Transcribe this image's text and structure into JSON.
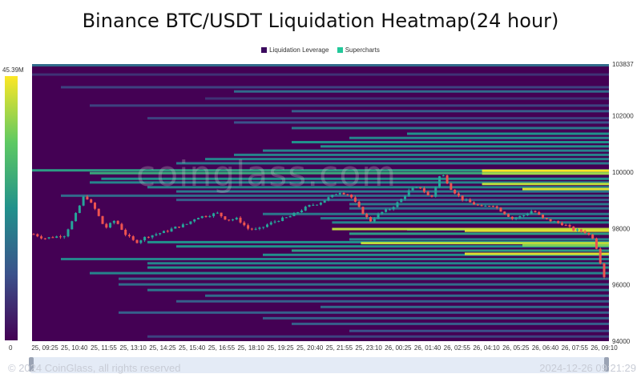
{
  "chart_data": {
    "type": "heatmap",
    "title": "Binance BTC/USDT Liquidation Heatmap(24 hour)",
    "legend": [
      {
        "name": "Liquidation Leverage",
        "color": "#3b0a5e"
      },
      {
        "name": "Supercharts",
        "color": "#22c89a"
      }
    ],
    "legend_position": "top-center",
    "colorbar": {
      "max_label": "45.39M",
      "min_label": "0",
      "colors": [
        "#440154",
        "#3b528b",
        "#21918c",
        "#5ec962",
        "#fde725"
      ]
    },
    "x_ticks": [
      "25, 09:25",
      "25, 10:40",
      "25, 11:55",
      "25, 13:10",
      "25, 14:25",
      "25, 15:40",
      "25, 16:55",
      "25, 18:10",
      "25, 19:25",
      "25, 20:40",
      "25, 21:55",
      "25, 23:10",
      "26, 00:25",
      "26, 01:40",
      "26, 02:55",
      "26, 04:10",
      "26, 05:25",
      "26, 06:40",
      "26, 07:55",
      "26, 09:10"
    ],
    "y_ticks": [
      "103837",
      "102000",
      "100000",
      "98000",
      "96000",
      "94000"
    ],
    "y_tick_values": [
      103837,
      102000,
      100000,
      98000,
      96000,
      94000
    ],
    "ylim": [
      94000,
      103837
    ],
    "price_series": [
      97800,
      97650,
      97700,
      97750,
      98400,
      99200,
      98700,
      98000,
      98300,
      97800,
      97500,
      97700,
      97800,
      97900,
      98050,
      98150,
      98400,
      98450,
      98550,
      98300,
      98350,
      98000,
      97950,
      98150,
      98300,
      98400,
      98600,
      98800,
      98900,
      99100,
      99300,
      99200,
      98700,
      98250,
      98550,
      98700,
      99000,
      99400,
      99450,
      99050,
      100000,
      99400,
      99050,
      98900,
      98750,
      98850,
      98600,
      98350,
      98450,
      98650,
      98350,
      98250,
      98150,
      97950,
      97900,
      97650,
      96300
    ],
    "liquidation_levels": [
      {
        "start": 0.0,
        "price": 103780,
        "level": 0.35
      },
      {
        "start": 0.0,
        "price": 103450,
        "level": 0.15
      },
      {
        "start": 0.05,
        "price": 103000,
        "level": 0.2
      },
      {
        "start": 0.35,
        "price": 102850,
        "level": 0.35
      },
      {
        "start": 0.3,
        "price": 102600,
        "level": 0.15
      },
      {
        "start": 0.1,
        "price": 102350,
        "level": 0.2
      },
      {
        "start": 0.45,
        "price": 102150,
        "level": 0.3
      },
      {
        "start": 0.2,
        "price": 101900,
        "level": 0.2
      },
      {
        "start": 0.35,
        "price": 101750,
        "level": 0.25
      },
      {
        "start": 0.45,
        "price": 101550,
        "level": 0.4
      },
      {
        "start": 0.65,
        "price": 101350,
        "level": 0.5
      },
      {
        "start": 0.55,
        "price": 101200,
        "level": 0.45
      },
      {
        "start": 0.45,
        "price": 101050,
        "level": 0.5
      },
      {
        "start": 0.5,
        "price": 100900,
        "level": 0.5
      },
      {
        "start": 0.4,
        "price": 100750,
        "level": 0.45
      },
      {
        "start": 0.35,
        "price": 100600,
        "level": 0.45
      },
      {
        "start": 0.3,
        "price": 100450,
        "level": 0.45
      },
      {
        "start": 0.25,
        "price": 100300,
        "level": 0.4
      },
      {
        "start": 0.0,
        "price": 100050,
        "level": 0.55
      },
      {
        "start": 0.1,
        "price": 99950,
        "level": 0.6
      },
      {
        "start": 0.12,
        "price": 99750,
        "level": 0.5
      },
      {
        "start": 0.1,
        "price": 99620,
        "level": 0.45
      },
      {
        "start": 0.2,
        "price": 99450,
        "level": 0.45
      },
      {
        "start": 0.25,
        "price": 99300,
        "level": 0.4
      },
      {
        "start": 0.05,
        "price": 99150,
        "level": 0.35
      },
      {
        "start": 0.25,
        "price": 99000,
        "level": 0.3
      },
      {
        "start": 0.55,
        "price": 98850,
        "level": 0.4
      },
      {
        "start": 0.55,
        "price": 98700,
        "level": 0.35
      },
      {
        "start": 0.4,
        "price": 98500,
        "level": 0.4
      },
      {
        "start": 0.5,
        "price": 98350,
        "level": 0.4
      },
      {
        "start": 0.52,
        "price": 98200,
        "level": 0.45
      },
      {
        "start": 0.65,
        "price": 97950,
        "level": 0.5
      },
      {
        "start": 0.55,
        "price": 97800,
        "level": 0.55
      },
      {
        "start": 0.55,
        "price": 97600,
        "level": 0.45
      },
      {
        "start": 0.2,
        "price": 97500,
        "level": 0.5
      },
      {
        "start": 0.25,
        "price": 97350,
        "level": 0.5
      },
      {
        "start": 0.45,
        "price": 97200,
        "level": 0.55
      },
      {
        "start": 0.4,
        "price": 97050,
        "level": 0.5
      },
      {
        "start": 0.05,
        "price": 96900,
        "level": 0.45
      },
      {
        "start": 0.2,
        "price": 96750,
        "level": 0.45
      },
      {
        "start": 0.2,
        "price": 96600,
        "level": 0.5
      },
      {
        "start": 0.1,
        "price": 96400,
        "level": 0.45
      },
      {
        "start": 0.15,
        "price": 96200,
        "level": 0.35
      },
      {
        "start": 0.15,
        "price": 96000,
        "level": 0.35
      },
      {
        "start": 0.2,
        "price": 95800,
        "level": 0.4
      },
      {
        "start": 0.3,
        "price": 95600,
        "level": 0.35
      },
      {
        "start": 0.25,
        "price": 95400,
        "level": 0.3
      },
      {
        "start": 0.5,
        "price": 95200,
        "level": 0.35
      },
      {
        "start": 0.15,
        "price": 95000,
        "level": 0.3
      },
      {
        "start": 0.4,
        "price": 94800,
        "level": 0.3
      },
      {
        "start": 0.45,
        "price": 94600,
        "level": 0.3
      },
      {
        "start": 0.55,
        "price": 94350,
        "level": 0.25
      },
      {
        "start": 0.2,
        "price": 94150,
        "level": 0.2
      }
    ],
    "hot_levels": [
      {
        "start": 0.78,
        "price": 100050,
        "level": 1.0
      },
      {
        "start": 0.78,
        "price": 99950,
        "level": 0.85
      },
      {
        "start": 0.78,
        "price": 99580,
        "level": 0.9
      },
      {
        "start": 0.85,
        "price": 99400,
        "level": 0.95
      },
      {
        "start": 0.52,
        "price": 97980,
        "level": 0.9
      },
      {
        "start": 0.75,
        "price": 97920,
        "level": 0.95
      },
      {
        "start": 0.57,
        "price": 97480,
        "level": 0.9
      },
      {
        "start": 0.75,
        "price": 97100,
        "level": 0.95
      },
      {
        "start": 0.85,
        "price": 97400,
        "level": 0.8
      }
    ]
  },
  "watermark": "coinglass.com",
  "footer": {
    "copyright": "© 2024 CoinGlass, all rights reserved",
    "datetime": "2024-12-26 09:21:29"
  }
}
